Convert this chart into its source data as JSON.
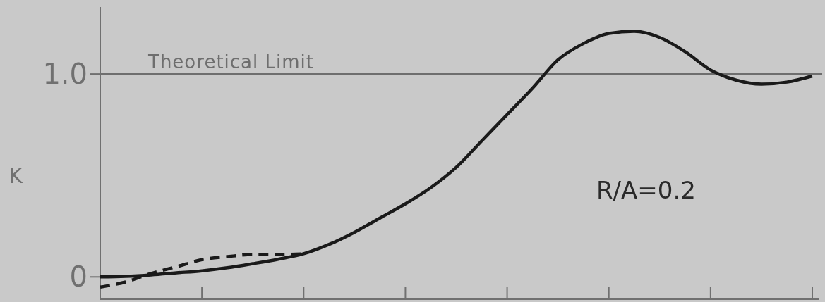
{
  "chart_data": {
    "type": "line",
    "ylabel": "K",
    "categories": [
      null,
      null,
      null,
      null,
      null,
      null,
      null,
      null,
      null,
      null,
      null,
      null,
      null,
      null,
      null,
      null,
      null,
      null,
      null,
      null,
      null,
      null,
      null,
      null,
      null,
      null,
      null,
      null,
      null
    ],
    "series": [
      {
        "color": "#1a1a1a",
        "line_style": "solid",
        "values": [
          0,
          0.003,
          0.01,
          0.02,
          0.03,
          0.045,
          0.065,
          0.087,
          0.114,
          0.16,
          0.22,
          0.29,
          0.36,
          0.44,
          0.54,
          0.67,
          0.8,
          0.93,
          1.07,
          1.15,
          1.2,
          1.21,
          1.18,
          1.11,
          1.02,
          0.97,
          0.95,
          0.96,
          0.99
        ]
      },
      {
        "color": "#1a1a1a",
        "line_style": "dashed",
        "values": [
          -0.05,
          -0.025,
          0.017,
          0.05,
          0.085,
          0.1,
          0.11,
          0.11,
          0.114,
          null,
          null,
          null,
          null,
          null,
          null,
          null,
          null,
          null,
          null,
          null,
          null,
          null,
          null,
          null,
          null,
          null,
          null,
          null,
          null
        ]
      }
    ],
    "ylim": [
      -0.11,
      1.33
    ],
    "yticks": [
      0,
      {
        "value": 1,
        "label": "1.0"
      }
    ],
    "tick_labels": "y",
    "ref_lines": [
      {
        "axis": "y",
        "value": 1,
        "label": "Theoretical Limit",
        "color": "#6e6e6e"
      }
    ],
    "annotations": [
      "R/A=0.2"
    ],
    "grid": false,
    "marker": "none"
  }
}
